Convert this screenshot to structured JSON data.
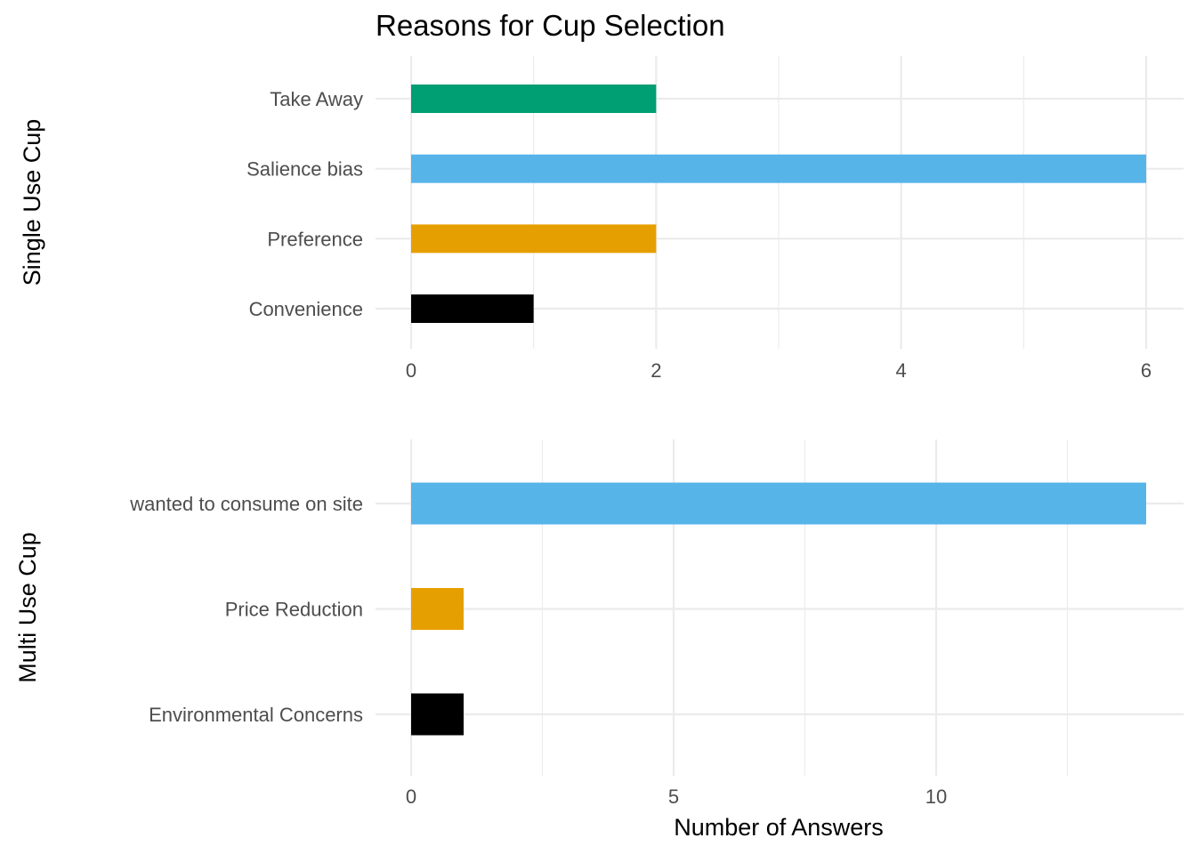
{
  "chart_data": {
    "type": "bar",
    "orientation": "horizontal",
    "title": "Reasons for Cup Selection",
    "xlabel": "Number of Answers",
    "grid": true,
    "panels": [
      {
        "ylabel": "Single Use Cup",
        "categories": [
          "Take Away",
          "Salience bias",
          "Preference",
          "Convenience"
        ],
        "values": [
          2,
          6,
          2,
          1
        ],
        "colors": [
          "#009E73",
          "#56B4E9",
          "#E69F00",
          "#000000"
        ],
        "xlim": [
          0,
          6
        ],
        "xticks": [
          0,
          2,
          4,
          6
        ]
      },
      {
        "ylabel": "Multi Use Cup",
        "categories": [
          "wanted to consume on site",
          "Price Reduction",
          "Environmental Concerns"
        ],
        "values": [
          14,
          1,
          1
        ],
        "colors": [
          "#56B4E9",
          "#E69F00",
          "#000000"
        ],
        "xlim": [
          0,
          14
        ],
        "xticks": [
          0,
          5,
          10
        ]
      }
    ]
  }
}
